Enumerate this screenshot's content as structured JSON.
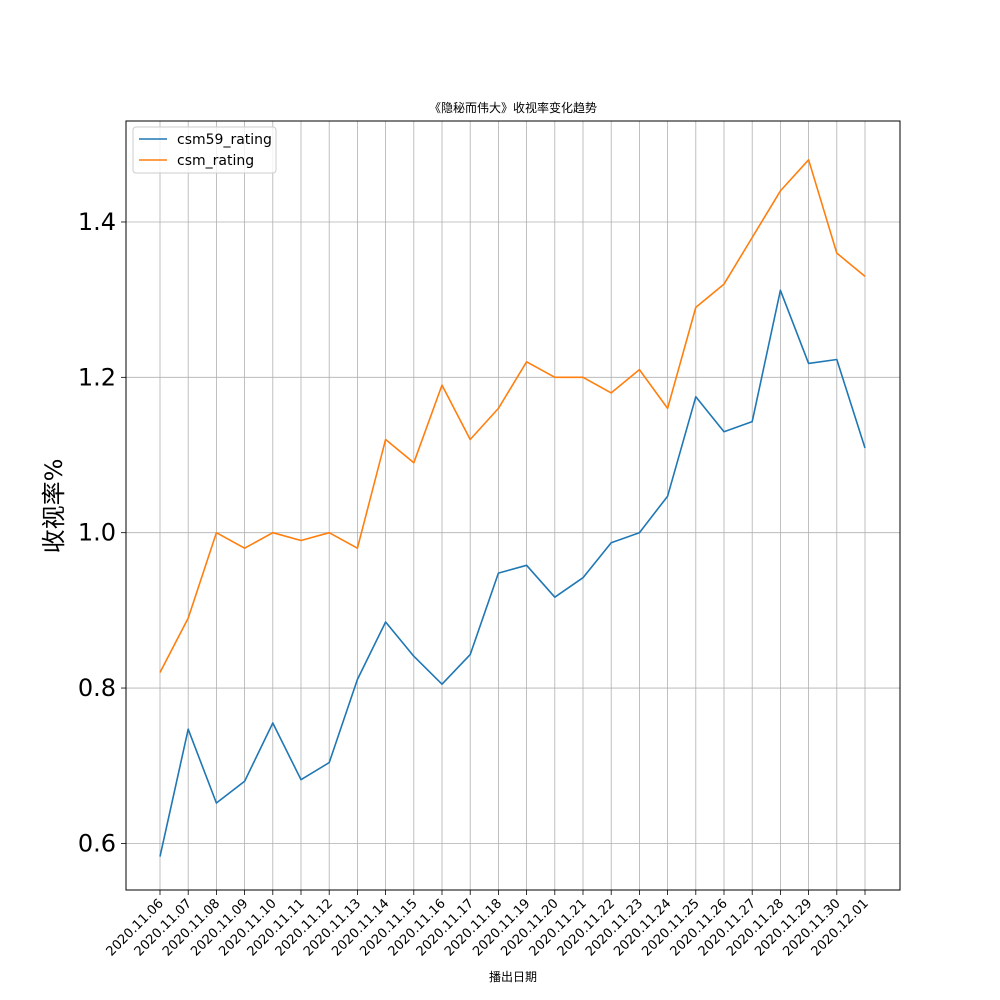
{
  "chart_data": {
    "type": "line",
    "title": "《隐秘而伟大》收视率变化趋势",
    "xlabel": "播出日期",
    "ylabel": "收视率%",
    "ylim": [
      0.54,
      1.53
    ],
    "yticks": [
      0.6,
      0.8,
      1.0,
      1.2,
      1.4
    ],
    "ytick_labels": [
      "0.6",
      "0.8",
      "1.0",
      "1.2",
      "1.4"
    ],
    "grid": true,
    "legend_position": "top-left",
    "categories": [
      "2020.11.06",
      "2020.11.07",
      "2020.11.08",
      "2020.11.09",
      "2020.11.10",
      "2020.11.11",
      "2020.11.12",
      "2020.11.13",
      "2020.11.14",
      "2020.11.15",
      "2020.11.16",
      "2020.11.17",
      "2020.11.18",
      "2020.11.19",
      "2020.11.20",
      "2020.11.21",
      "2020.11.22",
      "2020.11.23",
      "2020.11.24",
      "2020.11.25",
      "2020.11.26",
      "2020.11.27",
      "2020.11.28",
      "2020.11.29",
      "2020.11.30",
      "2020.12.01"
    ],
    "series": [
      {
        "name": "csm59_rating",
        "color": "#1f77b4",
        "values": [
          0.583,
          0.747,
          0.652,
          0.68,
          0.755,
          0.682,
          0.704,
          0.811,
          0.885,
          0.841,
          0.805,
          0.843,
          0.948,
          0.958,
          0.917,
          0.942,
          0.987,
          1.0,
          1.047,
          1.175,
          1.13,
          1.143,
          1.312,
          1.218,
          1.223,
          1.109
        ]
      },
      {
        "name": "csm_rating",
        "color": "#ff7f0e",
        "values": [
          0.82,
          0.89,
          1.0,
          0.98,
          1.0,
          0.99,
          1.0,
          0.98,
          1.12,
          1.09,
          1.19,
          1.12,
          1.16,
          1.22,
          1.2,
          1.2,
          1.18,
          1.21,
          1.16,
          1.29,
          1.32,
          1.38,
          1.44,
          1.48,
          1.36,
          1.33
        ]
      }
    ]
  }
}
